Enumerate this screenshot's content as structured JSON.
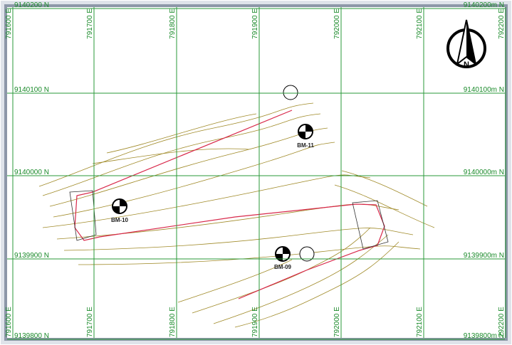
{
  "map": {
    "eastings_top": [
      "791600 E",
      "791700 E",
      "791800 E",
      "791900 E",
      "792000 E",
      "792100 E",
      "792200 E"
    ],
    "eastings_bottom": [
      "791600 E",
      "791700 E",
      "791800 E",
      "791900 E",
      "792000 E",
      "792100 E",
      "792200 E"
    ],
    "northings_left": [
      "9140200 N",
      "9140100 N",
      "9140000 N",
      "9139900 N",
      "9139800 N"
    ],
    "northings_right": [
      "9140200m N",
      "9140100m N",
      "9140000m N",
      "9139900m N",
      "9139800m N"
    ],
    "benchmarks": [
      "BM-11",
      "BM-10",
      "BM-09"
    ],
    "north_label": "N"
  }
}
